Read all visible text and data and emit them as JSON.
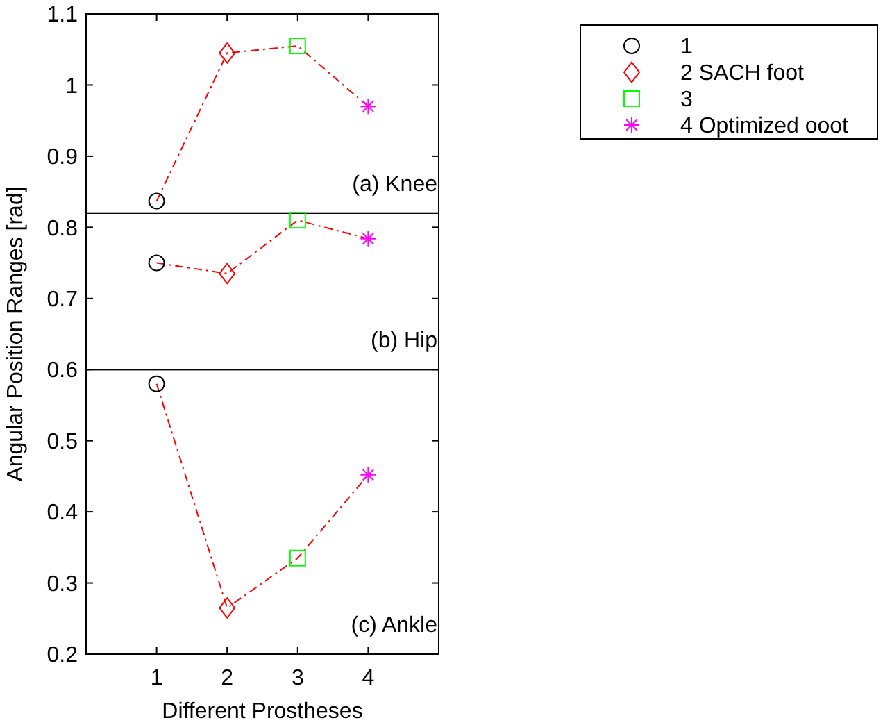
{
  "chart_data": [
    {
      "type": "line",
      "xlim": [
        0,
        5
      ],
      "xticks": [
        1,
        2,
        3,
        4
      ],
      "ylim": [
        0.82,
        1.1
      ],
      "yticks": [
        0.9,
        1,
        1.1
      ],
      "tick_labels": "y",
      "legend": "top right",
      "annotations": [
        "(a) Knee"
      ],
      "series": [
        {
          "color": "#ff0000",
          "line_style": "dashed",
          "marker": "none",
          "x": [
            1,
            2,
            3,
            4
          ],
          "values": [
            0.837,
            1.045,
            1.055,
            0.97
          ]
        },
        {
          "type": "scatter",
          "name": "1",
          "color": "#000000",
          "marker": "circle",
          "x": [
            1
          ],
          "values": [
            0.837
          ]
        },
        {
          "type": "scatter",
          "name": "2 SACH foot",
          "color": "#ff0000",
          "marker": "diamond",
          "x": [
            2
          ],
          "values": [
            1.045
          ]
        },
        {
          "type": "scatter",
          "name": "3",
          "color": "#00ff00",
          "marker": "square",
          "x": [
            3
          ],
          "values": [
            1.055
          ]
        },
        {
          "type": "scatter",
          "name": "4 Optimized ooot",
          "color": "#ff00ff",
          "marker": "cross",
          "x": [
            4
          ],
          "values": [
            0.97
          ]
        }
      ]
    },
    {
      "type": "line",
      "xlim": [
        0,
        5
      ],
      "xticks": [
        1,
        2,
        3,
        4
      ],
      "ylim": [
        0.6,
        0.82
      ],
      "yticks": [
        0.7,
        0.8
      ],
      "tick_labels": "y",
      "ylabel": "Angular Position Ranges [rad]",
      "annotations": [
        "(b) Hip"
      ],
      "series": [
        {
          "color": "#ff0000",
          "line_style": "dashed",
          "marker": "none",
          "x": [
            1,
            2,
            3,
            4
          ],
          "values": [
            0.75,
            0.735,
            0.81,
            0.784
          ]
        },
        {
          "type": "scatter",
          "color": "#000000",
          "marker": "circle",
          "x": [
            1
          ],
          "values": [
            0.75
          ]
        },
        {
          "type": "scatter",
          "color": "#ff0000",
          "marker": "diamond",
          "x": [
            2
          ],
          "values": [
            0.735
          ]
        },
        {
          "type": "scatter",
          "color": "#00ff00",
          "marker": "square",
          "x": [
            3
          ],
          "values": [
            0.81
          ]
        },
        {
          "type": "scatter",
          "color": "#ff00ff",
          "marker": "cross",
          "x": [
            4
          ],
          "values": [
            0.784
          ]
        }
      ]
    },
    {
      "type": "line",
      "xlim": [
        0,
        5
      ],
      "xticks": [
        1,
        2,
        3,
        4
      ],
      "ylim": [
        0.2,
        0.6
      ],
      "yticks": [
        0.2,
        0.3,
        0.4,
        0.5,
        0.6
      ],
      "xlabel": "Different Prostheses",
      "annotations": [
        "(c) Ankle"
      ],
      "series": [
        {
          "color": "#ff0000",
          "line_style": "dashed",
          "marker": "none",
          "x": [
            1,
            2,
            3,
            4
          ],
          "values": [
            0.58,
            0.265,
            0.335,
            0.452
          ]
        },
        {
          "type": "scatter",
          "color": "#000000",
          "marker": "circle",
          "x": [
            1
          ],
          "values": [
            0.58
          ]
        },
        {
          "type": "scatter",
          "color": "#ff0000",
          "marker": "diamond",
          "x": [
            2
          ],
          "values": [
            0.265
          ]
        },
        {
          "type": "scatter",
          "color": "#00ff00",
          "marker": "square",
          "x": [
            3
          ],
          "values": [
            0.335
          ]
        },
        {
          "type": "scatter",
          "color": "#ff00ff",
          "marker": "cross",
          "x": [
            4
          ],
          "values": [
            0.452
          ]
        }
      ]
    }
  ]
}
